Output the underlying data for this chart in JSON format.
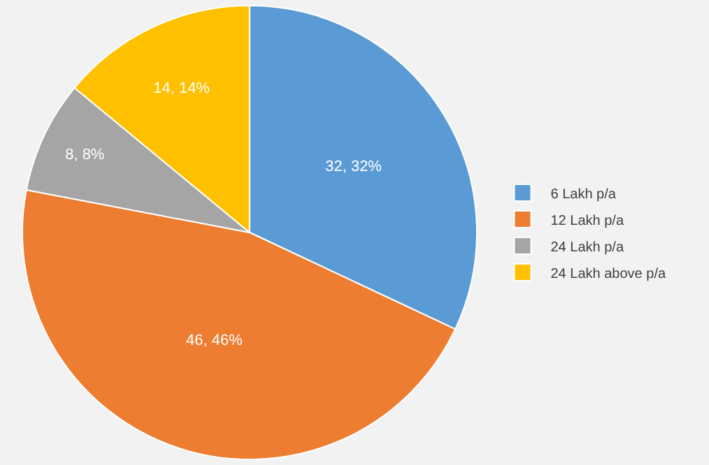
{
  "chart_data": {
    "type": "pie",
    "categories": [
      "6 Lakh p/a",
      "12 Lakh p/a",
      "24 Lakh p/a",
      "24 Lakh above p/a"
    ],
    "values": [
      32,
      46,
      8,
      14
    ],
    "colors": [
      "#5b9bd5",
      "#ed7d31",
      "#a5a5a5",
      "#ffc000"
    ],
    "value_labels": [
      "32, 32%",
      "46, 46%",
      "8, 8%",
      "14, 14%"
    ],
    "legend": "right"
  }
}
